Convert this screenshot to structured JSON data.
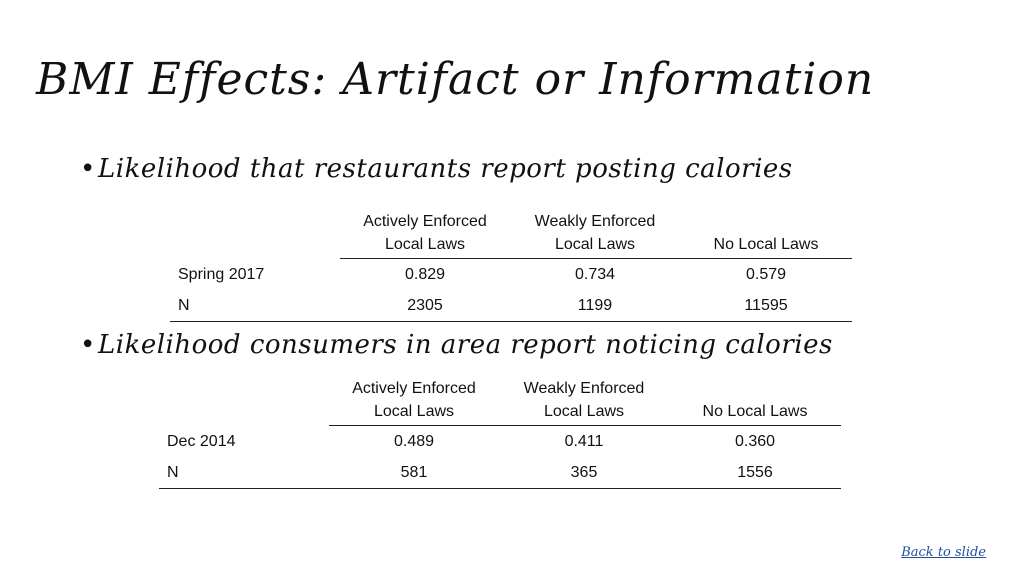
{
  "title": "BMI Effects: Artifact or Information",
  "sections": [
    {
      "bullet": "Likelihood that restaurants report posting calories",
      "columns": [
        [
          "Actively Enforced",
          "Local Laws"
        ],
        [
          "Weakly Enforced",
          "Local Laws"
        ],
        [
          "",
          "No Local Laws"
        ]
      ],
      "rows": [
        {
          "label": "Spring 2017",
          "values": [
            "0.829",
            "0.734",
            "0.579"
          ]
        },
        {
          "label": "N",
          "values": [
            "2305",
            "1199",
            "11595"
          ]
        }
      ]
    },
    {
      "bullet": "Likelihood consumers in area report noticing calories",
      "columns": [
        [
          "Actively Enforced",
          "Local Laws"
        ],
        [
          "Weakly Enforced",
          "Local Laws"
        ],
        [
          "",
          "No Local Laws"
        ]
      ],
      "rows": [
        {
          "label": "Dec 2014",
          "values": [
            "0.489",
            "0.411",
            "0.360"
          ]
        },
        {
          "label": "N",
          "values": [
            "581",
            "365",
            "1556"
          ]
        }
      ]
    }
  ],
  "back_link": "Back to slide"
}
